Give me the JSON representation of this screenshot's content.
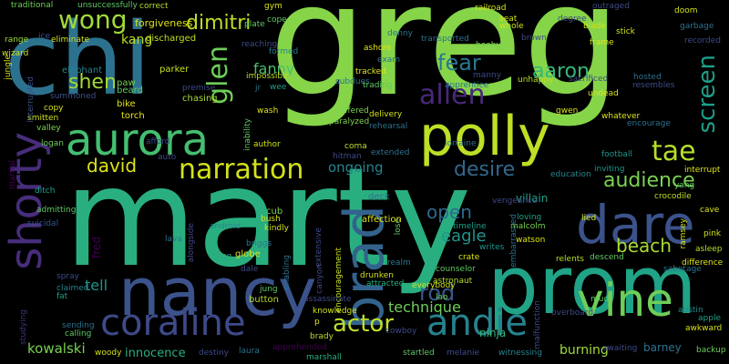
{
  "words": [
    {
      "text": "greg",
      "color": "#86d549"
    },
    {
      "text": "marty",
      "color": "#29af7f"
    },
    {
      "text": "chi",
      "color": "#2c728e"
    },
    {
      "text": "prom",
      "color": "#20a386"
    },
    {
      "text": "nancy",
      "color": "#3b528b"
    },
    {
      "text": "polly",
      "color": "#bddf26"
    },
    {
      "text": "aurora",
      "color": "#44bf70"
    },
    {
      "text": "shorty",
      "color": "#472d7b"
    },
    {
      "text": "brad",
      "color": "#33638d"
    },
    {
      "text": "dare",
      "color": "#3b528b"
    },
    {
      "text": "vine",
      "color": "#6ece58"
    },
    {
      "text": "coraline",
      "color": "#3e4a89"
    },
    {
      "text": "andie",
      "color": "#26828e"
    },
    {
      "text": "narration",
      "color": "#d2e21b"
    },
    {
      "text": "wong",
      "color": "#a2da37"
    },
    {
      "text": "allen",
      "color": "#482878"
    },
    {
      "text": "glen",
      "color": "#6ece58"
    },
    {
      "text": "tae",
      "color": "#b5de2b"
    },
    {
      "text": "screen",
      "color": "#1f9e89"
    },
    {
      "text": "dimitri",
      "color": "#bddf26"
    },
    {
      "text": "fear",
      "color": "#2a788e"
    },
    {
      "text": "aaron",
      "color": "#35b779"
    },
    {
      "text": "shen",
      "color": "#a2da37"
    },
    {
      "text": "desire",
      "color": "#31688e"
    },
    {
      "text": "audience",
      "color": "#7ad151"
    },
    {
      "text": "actor",
      "color": "#bddf26"
    },
    {
      "text": "rod",
      "color": "#39568c"
    },
    {
      "text": "david",
      "color": "#dde318"
    },
    {
      "text": "beach",
      "color": "#a8db34"
    },
    {
      "text": "open",
      "color": "#31688e"
    },
    {
      "text": "eagle",
      "color": "#1f958b"
    },
    {
      "text": "technique",
      "color": "#6ece58"
    },
    {
      "text": "kowalski",
      "color": "#7ad151"
    },
    {
      "text": "tell",
      "color": "#1f968b"
    },
    {
      "text": "fanny",
      "color": "#4ac16d"
    },
    {
      "text": "kang",
      "color": "#bddf26"
    },
    {
      "text": "ongoing",
      "color": "#25848e"
    },
    {
      "text": "innocence",
      "color": "#29af7f"
    },
    {
      "text": "burning",
      "color": "#a2da37"
    },
    {
      "text": "barney",
      "color": "#2c728e"
    },
    {
      "text": "ninja",
      "color": "#35b779"
    },
    {
      "text": "fred",
      "color": "#440154"
    },
    {
      "text": "villain",
      "color": "#1fa187"
    },
    {
      "text": "forgiveness",
      "color": "#dde318"
    },
    {
      "text": "discharged",
      "color": "#c2df23"
    },
    {
      "text": "parker",
      "color": "#c8e020"
    },
    {
      "text": "elephant",
      "color": "#26828e"
    },
    {
      "text": "paw",
      "color": "#7ad151"
    },
    {
      "text": "beard",
      "color": "#5ec962"
    },
    {
      "text": "bike",
      "color": "#dde318"
    },
    {
      "text": "torch",
      "color": "#e5e419"
    },
    {
      "text": "chasing",
      "color": "#a8db34"
    },
    {
      "text": "cub",
      "color": "#7fd34e"
    },
    {
      "text": "deck",
      "color": "#2c728e"
    },
    {
      "text": "android",
      "color": "#25858e"
    },
    {
      "text": "globe",
      "color": "#dde318"
    },
    {
      "text": "briggs",
      "color": "#2a768e"
    },
    {
      "text": "kindly",
      "color": "#d2e21b"
    },
    {
      "text": "lava",
      "color": "#2c728e"
    },
    {
      "text": "dale",
      "color": "#3e4989"
    },
    {
      "text": "jung",
      "color": "#5ec962"
    },
    {
      "text": "button",
      "color": "#b5de2b"
    },
    {
      "text": "bush",
      "color": "#d2e21b"
    },
    {
      "text": "affection",
      "color": "#dde318"
    },
    {
      "text": "timeline",
      "color": "#1fa187"
    },
    {
      "text": "loving",
      "color": "#1fa187"
    },
    {
      "text": "malcolm",
      "color": "#7ad151"
    },
    {
      "text": "lied",
      "color": "#d2e21b"
    },
    {
      "text": "vengeance",
      "color": "#3e4a89"
    },
    {
      "text": "education",
      "color": "#25848e"
    },
    {
      "text": "inviting",
      "color": "#1f968b"
    },
    {
      "text": "crocodile",
      "color": "#bddf26"
    },
    {
      "text": "football",
      "color": "#1f958b"
    },
    {
      "text": "interrupt",
      "color": "#dde318"
    },
    {
      "text": "yang",
      "color": "#5ec962"
    },
    {
      "text": "cave",
      "color": "#dde318"
    },
    {
      "text": "pink",
      "color": "#d2e21b"
    },
    {
      "text": "asleep",
      "color": "#b5de2b"
    },
    {
      "text": "difference",
      "color": "#dde318"
    },
    {
      "text": "sabotage",
      "color": "#2a768e"
    },
    {
      "text": "awkward",
      "color": "#dde318"
    },
    {
      "text": "backup",
      "color": "#6ece58"
    },
    {
      "text": "apple",
      "color": "#1fa187"
    },
    {
      "text": "austin",
      "color": "#23898e"
    },
    {
      "text": "descend",
      "color": "#5ec962"
    },
    {
      "text": "relents",
      "color": "#b5de2b"
    },
    {
      "text": "watson",
      "color": "#dde318"
    },
    {
      "text": "writes",
      "color": "#1f958b"
    },
    {
      "text": "crate",
      "color": "#dde318"
    },
    {
      "text": "counselor",
      "color": "#5ec962"
    },
    {
      "text": "astronaut",
      "color": "#b5de2b"
    },
    {
      "text": "lao",
      "color": "#6ece58"
    },
    {
      "text": "everybody",
      "color": "#d2e21b"
    },
    {
      "text": "drunken",
      "color": "#d2e21b"
    },
    {
      "text": "attracted",
      "color": "#29af7f"
    },
    {
      "text": "realm",
      "color": "#2a768e"
    },
    {
      "text": "encouragement",
      "color": "#c8e020"
    },
    {
      "text": "knowledge",
      "color": "#d2e21b"
    },
    {
      "text": "brady",
      "color": "#bddf26"
    },
    {
      "text": "cowboy",
      "color": "#3e4a89"
    },
    {
      "text": "melanie",
      "color": "#3e4a89"
    },
    {
      "text": "startled",
      "color": "#5ec962"
    },
    {
      "text": "witnessing",
      "color": "#25858e"
    },
    {
      "text": "apprehended",
      "color": "#440154"
    },
    {
      "text": "marshall",
      "color": "#29af7f"
    },
    {
      "text": "laura",
      "color": "#2c728e"
    },
    {
      "text": "destiny",
      "color": "#3e4a89"
    },
    {
      "text": "woody",
      "color": "#d2e21b"
    },
    {
      "text": "calling",
      "color": "#5ec962"
    },
    {
      "text": "sending",
      "color": "#2c728e"
    },
    {
      "text": "fat",
      "color": "#1fa187"
    },
    {
      "text": "claimed",
      "color": "#25848e"
    },
    {
      "text": "spray",
      "color": "#3e4a89"
    },
    {
      "text": "studying",
      "color": "#46327e"
    },
    {
      "text": "suicidal",
      "color": "#39568c"
    },
    {
      "text": "admitting",
      "color": "#5ec962"
    },
    {
      "text": "ditch",
      "color": "#1fa187"
    },
    {
      "text": "martial",
      "color": "#440154"
    },
    {
      "text": "logan",
      "color": "#6ece58"
    },
    {
      "text": "valley",
      "color": "#7fd34e"
    },
    {
      "text": "smitten",
      "color": "#d2e21b"
    },
    {
      "text": "copy",
      "color": "#d2e21b"
    },
    {
      "text": "summoned",
      "color": "#3b528b"
    },
    {
      "text": "interrupted",
      "color": "#3b528b"
    },
    {
      "text": "jungle",
      "color": "#d2e21b"
    },
    {
      "text": "wizard",
      "color": "#d2e21b"
    },
    {
      "text": "range",
      "color": "#a2da37"
    },
    {
      "text": "traditional",
      "color": "#6ece58"
    },
    {
      "text": "unsuccessfully",
      "color": "#5ec962"
    },
    {
      "text": "correct",
      "color": "#b5de2b"
    },
    {
      "text": "eliminate",
      "color": "#d2e21b"
    },
    {
      "text": "ice",
      "color": "#3b528b"
    },
    {
      "text": "gym",
      "color": "#dde318"
    },
    {
      "text": "plate",
      "color": "#5ec962"
    },
    {
      "text": "cope",
      "color": "#5ec962"
    },
    {
      "text": "formed",
      "color": "#25848e"
    },
    {
      "text": "reaching",
      "color": "#3e4a89"
    },
    {
      "text": "impossible",
      "color": "#bddf26"
    },
    {
      "text": "jr",
      "color": "#2c728e"
    },
    {
      "text": "wee",
      "color": "#1fa187"
    },
    {
      "text": "premise",
      "color": "#3e4a89"
    },
    {
      "text": "wash",
      "color": "#dde318"
    },
    {
      "text": "inability",
      "color": "#5ec962"
    },
    {
      "text": "author",
      "color": "#d2e21b"
    },
    {
      "text": "auto",
      "color": "#3e4a89"
    },
    {
      "text": "afford",
      "color": "#3e4a89"
    },
    {
      "text": "suffered",
      "color": "#7fd34e"
    },
    {
      "text": "paralyzed",
      "color": "#7fd34e"
    },
    {
      "text": "coma",
      "color": "#bddf26"
    },
    {
      "text": "hitman",
      "color": "#3e4a89"
    },
    {
      "text": "subdues",
      "color": "#2c728e"
    },
    {
      "text": "trading",
      "color": "#5ec962"
    },
    {
      "text": "tracked",
      "color": "#dde318"
    },
    {
      "text": "exam",
      "color": "#2c728e"
    },
    {
      "text": "denny",
      "color": "#2c728e"
    },
    {
      "text": "ashore",
      "color": "#dde318"
    },
    {
      "text": "railroad",
      "color": "#d2e21b"
    },
    {
      "text": "seat",
      "color": "#d2e21b"
    },
    {
      "text": "whole",
      "color": "#d2e21b"
    },
    {
      "text": "transported",
      "color": "#2c728e"
    },
    {
      "text": "booby",
      "color": "#7ad151"
    },
    {
      "text": "brown",
      "color": "#3e4a89"
    },
    {
      "text": "manny",
      "color": "#3e4a89"
    },
    {
      "text": "apprentice",
      "color": "#2c728e"
    },
    {
      "text": "unhappy",
      "color": "#bddf26"
    },
    {
      "text": "sacrificed",
      "color": "#3e4a89"
    },
    {
      "text": "rehearsal",
      "color": "#2c728e"
    },
    {
      "text": "delivery",
      "color": "#d2e21b"
    },
    {
      "text": "lorraine",
      "color": "#2c728e"
    },
    {
      "text": "extended",
      "color": "#2c728e"
    },
    {
      "text": "gwen",
      "color": "#dde318"
    },
    {
      "text": "encourage",
      "color": "#2c728e"
    },
    {
      "text": "whatever",
      "color": "#dde318"
    },
    {
      "text": "undead",
      "color": "#dde318"
    },
    {
      "text": "hosted",
      "color": "#2c728e"
    },
    {
      "text": "resembles",
      "color": "#3e4a89"
    },
    {
      "text": "frame",
      "color": "#dde318"
    },
    {
      "text": "degree",
      "color": "#3e4a89"
    },
    {
      "text": "blade",
      "color": "#d2e21b"
    },
    {
      "text": "stick",
      "color": "#d2e21b"
    },
    {
      "text": "outraged",
      "color": "#3e4a89"
    },
    {
      "text": "doom",
      "color": "#d2e21b"
    },
    {
      "text": "garbage",
      "color": "#2c728e"
    },
    {
      "text": "recorded",
      "color": "#3e4a89"
    },
    {
      "text": "malfunction",
      "color": "#3e4a89"
    },
    {
      "text": "awaiting",
      "color": "#3e4a89"
    },
    {
      "text": "overboard",
      "color": "#3e4a89"
    },
    {
      "text": "mud",
      "color": "#5ec962"
    },
    {
      "text": "canyon",
      "color": "#3e4a89"
    },
    {
      "text": "enabling",
      "color": "#2c728e"
    },
    {
      "text": "firing",
      "color": "#29af7f"
    },
    {
      "text": "alongside",
      "color": "#3e4a89"
    },
    {
      "text": "lose",
      "color": "#5ec962"
    },
    {
      "text": "extensive",
      "color": "#3e4a89"
    },
    {
      "text": "assassinate",
      "color": "#3e4a89"
    },
    {
      "text": "ramsey",
      "color": "#d2e21b"
    },
    {
      "text": "embarrassed",
      "color": "#2c728e"
    },
    {
      "text": "p",
      "color": "#dde318"
    }
  ]
}
